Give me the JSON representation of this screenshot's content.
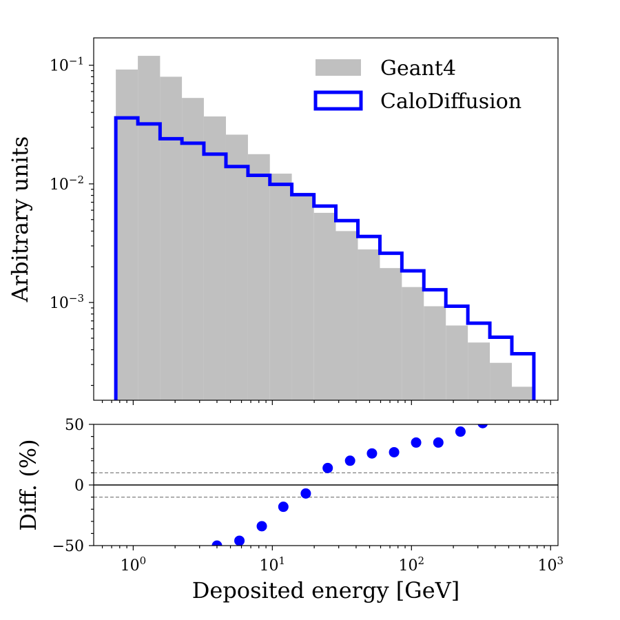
{
  "chart_data": {
    "type": "histogram",
    "bin_edges": [
      0.75,
      1.08,
      1.56,
      2.24,
      3.22,
      4.64,
      6.68,
      9.6,
      13.8,
      19.9,
      28.6,
      41.2,
      59.3,
      85.3,
      122.7,
      176.6,
      254.2,
      365.8,
      526.4,
      757.6
    ],
    "series": [
      {
        "name": "Geant4",
        "style": "filled",
        "color": "#c0c0c0",
        "values": [
          0.092,
          0.12,
          0.08,
          0.053,
          0.037,
          0.026,
          0.0178,
          0.0122,
          0.0084,
          0.0057,
          0.004,
          0.0028,
          0.00195,
          0.00135,
          0.00093,
          0.00064,
          0.00046,
          0.00031,
          0.000195
        ]
      },
      {
        "name": "CaloDiffusion",
        "style": "step",
        "color": "#0000ff",
        "values": [
          0.036,
          0.032,
          0.024,
          0.022,
          0.0178,
          0.014,
          0.0118,
          0.0099,
          0.0081,
          0.0065,
          0.0049,
          0.0036,
          0.0026,
          0.00185,
          0.00128,
          0.00093,
          0.00067,
          0.00051,
          0.00037
        ]
      }
    ],
    "ylabel": "Arbitrary units",
    "yscale": "log",
    "ylim": [
      0.00015,
      0.17
    ],
    "yticks": [
      {
        "value": 0.1,
        "label": "10",
        "exp": "−1"
      },
      {
        "value": 0.01,
        "label": "10",
        "exp": "−2"
      },
      {
        "value": 0.001,
        "label": "10",
        "exp": "−3"
      }
    ],
    "legend": {
      "placement": "upper-right"
    },
    "ratio_panel": {
      "type": "scatter",
      "ylabel": "Diff. (%)",
      "ylim": [
        -50,
        50
      ],
      "yticks": [
        {
          "value": 50,
          "label": "50"
        },
        {
          "value": 0,
          "label": "0"
        },
        {
          "value": -50,
          "label": "−50"
        }
      ],
      "reference_lines": [
        10,
        -10
      ],
      "zero_line": 0,
      "color": "#0000ff",
      "points": [
        {
          "x": 4.0,
          "y": -50
        },
        {
          "x": 5.8,
          "y": -46
        },
        {
          "x": 8.4,
          "y": -34
        },
        {
          "x": 12.0,
          "y": -18
        },
        {
          "x": 17.4,
          "y": -7
        },
        {
          "x": 25.0,
          "y": 14
        },
        {
          "x": 36.2,
          "y": 20
        },
        {
          "x": 52.0,
          "y": 26
        },
        {
          "x": 75.0,
          "y": 27
        },
        {
          "x": 108.0,
          "y": 35
        },
        {
          "x": 156.0,
          "y": 35
        },
        {
          "x": 225.0,
          "y": 44
        },
        {
          "x": 325.0,
          "y": 51
        }
      ]
    },
    "xlabel": "Deposited energy [GeV]",
    "xscale": "log",
    "xlim": [
      0.52,
      1130
    ],
    "xticks": [
      {
        "value": 1,
        "label": "10",
        "exp": "0"
      },
      {
        "value": 10,
        "label": "10",
        "exp": "1"
      },
      {
        "value": 100,
        "label": "10",
        "exp": "2"
      },
      {
        "value": 1000,
        "label": "10",
        "exp": "3"
      }
    ]
  }
}
